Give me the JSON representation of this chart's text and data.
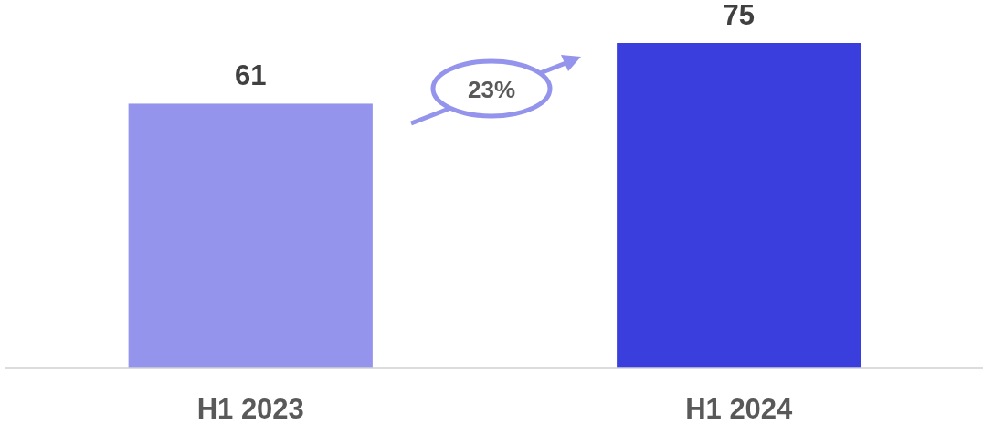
{
  "chart_data": {
    "type": "bar",
    "categories": [
      "H1 2023",
      "H1 2024"
    ],
    "values": [
      61,
      75
    ],
    "colors": [
      "#9494ec",
      "#3a3edd"
    ],
    "data_labels": true,
    "annotations": [
      "23%"
    ]
  }
}
